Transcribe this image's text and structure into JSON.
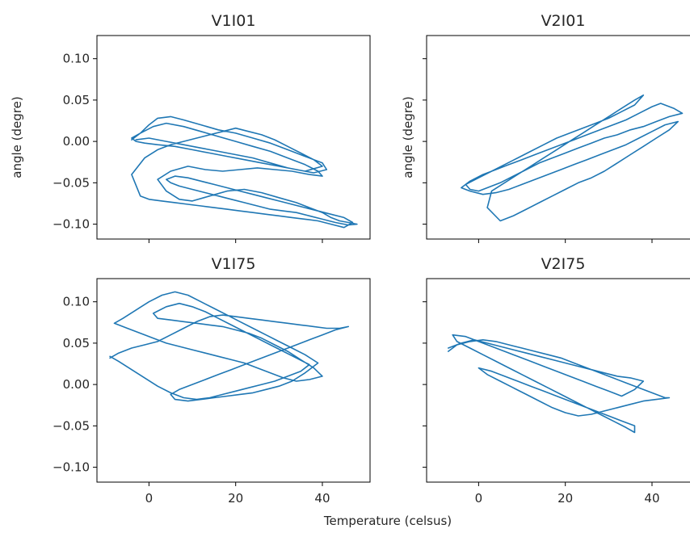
{
  "figure": {
    "xlabel": "Temperature (celsus)",
    "line_color": "#1f77b4"
  },
  "chart_data": [
    {
      "type": "line",
      "title": "V1I01",
      "xlabel": "",
      "ylabel": "angle (degre)",
      "xlim": [
        -12,
        51
      ],
      "ylim": [
        -0.118,
        0.128
      ],
      "x_ticks": [
        0,
        20,
        40
      ],
      "y_ticks": [
        -0.1,
        -0.05,
        0.0,
        0.05,
        0.1
      ],
      "y_tick_labels": [
        "−0.10",
        "−0.05",
        "0.00",
        "0.05",
        "0.10"
      ],
      "show_x_tick_labels": false,
      "show_y_tick_labels": true,
      "series": [
        {
          "x": [
            -4,
            -2,
            0,
            2,
            5,
            8,
            12,
            16,
            20,
            24,
            28,
            32,
            36,
            40,
            41,
            38,
            34,
            30,
            26,
            22,
            18,
            14,
            10,
            6,
            2,
            -1,
            -3,
            -4,
            -2,
            1,
            4,
            8,
            12,
            16,
            20,
            24,
            28,
            32,
            36,
            39,
            40,
            37,
            33,
            29,
            25,
            21,
            17,
            13,
            9,
            5,
            2,
            4,
            7,
            10,
            14,
            18,
            22,
            26,
            30,
            34,
            37,
            40,
            42,
            44,
            46,
            48,
            46,
            43,
            40,
            37,
            34,
            31,
            28,
            25,
            22,
            19,
            16,
            13,
            10,
            7,
            5,
            4,
            6,
            9,
            12,
            15,
            18,
            21,
            24,
            27,
            30,
            33,
            36,
            39,
            42,
            45,
            47,
            45,
            42,
            39,
            36,
            33,
            30,
            27,
            24,
            21,
            18,
            15,
            12,
            9,
            6,
            3,
            0,
            -2,
            -4,
            -1,
            2,
            5,
            8,
            11,
            14,
            17,
            20,
            23,
            26,
            29,
            32,
            35,
            38,
            40,
            36,
            32,
            28,
            24,
            20,
            16,
            12,
            8,
            4,
            0,
            -3
          ],
          "y": [
            0.002,
            0.01,
            0.02,
            0.028,
            0.03,
            0.026,
            0.02,
            0.014,
            0.01,
            0.004,
            -0.002,
            -0.01,
            -0.018,
            -0.026,
            -0.034,
            -0.038,
            -0.034,
            -0.03,
            -0.026,
            -0.022,
            -0.018,
            -0.014,
            -0.01,
            -0.006,
            -0.004,
            -0.002,
            0.0,
            0.004,
            0.01,
            0.018,
            0.022,
            0.018,
            0.012,
            0.006,
            0.0,
            -0.006,
            -0.012,
            -0.02,
            -0.028,
            -0.036,
            -0.042,
            -0.04,
            -0.036,
            -0.034,
            -0.032,
            -0.034,
            -0.036,
            -0.034,
            -0.03,
            -0.036,
            -0.046,
            -0.06,
            -0.07,
            -0.072,
            -0.066,
            -0.06,
            -0.058,
            -0.062,
            -0.068,
            -0.074,
            -0.08,
            -0.086,
            -0.092,
            -0.096,
            -0.098,
            -0.1,
            -0.101,
            -0.098,
            -0.094,
            -0.09,
            -0.086,
            -0.084,
            -0.082,
            -0.078,
            -0.074,
            -0.07,
            -0.066,
            -0.062,
            -0.058,
            -0.054,
            -0.05,
            -0.046,
            -0.042,
            -0.044,
            -0.048,
            -0.052,
            -0.056,
            -0.06,
            -0.064,
            -0.068,
            -0.072,
            -0.076,
            -0.08,
            -0.084,
            -0.088,
            -0.092,
            -0.098,
            -0.104,
            -0.1,
            -0.096,
            -0.094,
            -0.092,
            -0.09,
            -0.088,
            -0.086,
            -0.084,
            -0.082,
            -0.08,
            -0.078,
            -0.076,
            -0.074,
            -0.072,
            -0.07,
            -0.066,
            -0.04,
            -0.02,
            -0.01,
            -0.004,
            0.0,
            0.004,
            0.008,
            0.012,
            0.016,
            0.012,
            0.008,
            0.002,
            -0.006,
            -0.014,
            -0.022,
            -0.03,
            -0.036,
            -0.032,
            -0.026,
            -0.02,
            -0.016,
            -0.012,
            -0.008,
            -0.004,
            0.0,
            0.004,
            0.002
          ]
        }
      ]
    },
    {
      "type": "line",
      "title": "V2I01",
      "xlabel": "",
      "ylabel": "angle (degre)",
      "xlim": [
        -12,
        51
      ],
      "ylim": [
        -0.118,
        0.128
      ],
      "x_ticks": [
        0,
        20,
        40
      ],
      "y_ticks": [
        -0.1,
        -0.05,
        0.0,
        0.05,
        0.1
      ],
      "y_tick_labels": [
        "−0.10",
        "−0.05",
        "0.00",
        "0.05",
        "0.10"
      ],
      "show_x_tick_labels": false,
      "show_y_tick_labels": false,
      "series": [
        {
          "x": [
            -4,
            -2,
            1,
            4,
            7,
            10,
            13,
            16,
            19,
            22,
            25,
            28,
            31,
            34,
            37,
            40,
            42,
            45,
            47,
            44,
            41,
            38,
            35,
            32,
            29,
            26,
            23,
            20,
            17,
            14,
            11,
            8,
            5,
            2,
            0,
            -2,
            -3,
            0,
            3,
            6,
            9,
            12,
            15,
            18,
            21,
            24,
            27,
            30,
            33,
            36,
            38,
            36,
            33,
            30,
            27,
            24,
            21,
            18,
            15,
            12,
            9,
            6,
            3,
            2,
            5,
            8,
            11,
            14,
            17,
            20,
            23,
            26,
            29,
            32,
            35,
            38,
            41,
            44,
            46,
            43,
            40,
            37,
            34,
            31,
            28,
            25,
            22,
            19,
            16,
            13,
            10,
            7,
            4,
            1,
            -2,
            -4
          ],
          "y": [
            -0.056,
            -0.048,
            -0.04,
            -0.034,
            -0.028,
            -0.022,
            -0.016,
            -0.01,
            -0.004,
            0.002,
            0.008,
            0.014,
            0.02,
            0.026,
            0.034,
            0.042,
            0.046,
            0.04,
            0.034,
            0.03,
            0.024,
            0.018,
            0.014,
            0.008,
            0.004,
            -0.002,
            -0.008,
            -0.014,
            -0.02,
            -0.026,
            -0.034,
            -0.042,
            -0.05,
            -0.056,
            -0.06,
            -0.058,
            -0.052,
            -0.044,
            -0.036,
            -0.028,
            -0.02,
            -0.012,
            -0.004,
            0.004,
            0.01,
            0.016,
            0.022,
            0.028,
            0.036,
            0.044,
            0.056,
            0.05,
            0.04,
            0.03,
            0.02,
            0.01,
            0.0,
            -0.01,
            -0.02,
            -0.03,
            -0.04,
            -0.05,
            -0.06,
            -0.08,
            -0.096,
            -0.09,
            -0.082,
            -0.074,
            -0.066,
            -0.058,
            -0.05,
            -0.044,
            -0.036,
            -0.026,
            -0.016,
            -0.006,
            0.004,
            0.014,
            0.024,
            0.02,
            0.012,
            0.004,
            -0.004,
            -0.01,
            -0.016,
            -0.022,
            -0.028,
            -0.034,
            -0.04,
            -0.046,
            -0.052,
            -0.058,
            -0.062,
            -0.064,
            -0.06,
            -0.056
          ]
        }
      ]
    },
    {
      "type": "line",
      "title": "V1I75",
      "xlabel": "",
      "ylabel": "",
      "xlim": [
        -12,
        51
      ],
      "ylim": [
        -0.118,
        0.128
      ],
      "x_ticks": [
        0,
        20,
        40
      ],
      "y_ticks": [
        -0.1,
        -0.05,
        0.0,
        0.05,
        0.1
      ],
      "y_tick_labels": [
        "−0.10",
        "−0.05",
        "0.00",
        "0.05",
        "0.10"
      ],
      "show_x_tick_labels": true,
      "show_y_tick_labels": true,
      "series": [
        {
          "x": [
            -9,
            -7,
            -4,
            -1,
            2,
            5,
            8,
            11,
            14,
            17,
            20,
            23,
            26,
            29,
            32,
            35,
            38,
            41,
            44,
            46,
            43,
            40,
            37,
            34,
            31,
            28,
            25,
            22,
            19,
            16,
            13,
            10,
            7,
            5,
            6,
            9,
            12,
            15,
            18,
            21,
            24,
            27,
            30,
            33,
            36,
            39,
            36,
            33,
            30,
            27,
            24,
            21,
            18,
            15,
            12,
            9,
            6,
            3,
            0,
            -3,
            -6,
            -8,
            -5,
            -2,
            1,
            4,
            7,
            10,
            13,
            16,
            19,
            22,
            25,
            28,
            31,
            34,
            37,
            40,
            38,
            35,
            32,
            29,
            26,
            23,
            20,
            17,
            14,
            11,
            8,
            5,
            2,
            1,
            4,
            7,
            10,
            13,
            16,
            19,
            22,
            25,
            28,
            31,
            34,
            37,
            35,
            32,
            29,
            26,
            23,
            20,
            17,
            14,
            11,
            8,
            5,
            2,
            -1,
            -4,
            -7,
            -9
          ],
          "y": [
            0.032,
            0.038,
            0.044,
            0.048,
            0.052,
            0.06,
            0.068,
            0.076,
            0.082,
            0.084,
            0.082,
            0.08,
            0.078,
            0.076,
            0.074,
            0.072,
            0.07,
            0.068,
            0.068,
            0.07,
            0.066,
            0.06,
            0.054,
            0.048,
            0.042,
            0.036,
            0.03,
            0.024,
            0.018,
            0.012,
            0.006,
            0.0,
            -0.006,
            -0.012,
            -0.018,
            -0.02,
            -0.018,
            -0.016,
            -0.014,
            -0.012,
            -0.01,
            -0.006,
            -0.002,
            0.004,
            0.014,
            0.026,
            0.036,
            0.044,
            0.052,
            0.06,
            0.068,
            0.076,
            0.084,
            0.092,
            0.1,
            0.108,
            0.112,
            0.108,
            0.1,
            0.09,
            0.08,
            0.074,
            0.068,
            0.062,
            0.056,
            0.05,
            0.046,
            0.042,
            0.038,
            0.034,
            0.03,
            0.026,
            0.02,
            0.014,
            0.008,
            0.004,
            0.006,
            0.01,
            0.02,
            0.03,
            0.04,
            0.048,
            0.056,
            0.062,
            0.066,
            0.07,
            0.072,
            0.074,
            0.076,
            0.078,
            0.08,
            0.086,
            0.094,
            0.098,
            0.094,
            0.088,
            0.08,
            0.072,
            0.064,
            0.056,
            0.048,
            0.04,
            0.032,
            0.024,
            0.016,
            0.01,
            0.004,
            0.0,
            -0.004,
            -0.008,
            -0.012,
            -0.016,
            -0.018,
            -0.016,
            -0.01,
            -0.002,
            0.008,
            0.018,
            0.028,
            0.034
          ]
        }
      ]
    },
    {
      "type": "line",
      "title": "V2I75",
      "xlabel": "",
      "ylabel": "",
      "xlim": [
        -12,
        51
      ],
      "ylim": [
        -0.118,
        0.128
      ],
      "x_ticks": [
        0,
        20,
        40
      ],
      "y_ticks": [
        -0.1,
        -0.05,
        0.0,
        0.05,
        0.1
      ],
      "y_tick_labels": [
        "−0.10",
        "−0.05",
        "0.00",
        "0.05",
        "0.10"
      ],
      "show_x_tick_labels": true,
      "show_y_tick_labels": false,
      "series": [
        {
          "x": [
            -7,
            -5,
            -2,
            1,
            4,
            7,
            10,
            13,
            16,
            19,
            22,
            25,
            28,
            31,
            34,
            37,
            40,
            43,
            44,
            41,
            38,
            35,
            32,
            29,
            26,
            23,
            20,
            17,
            14,
            11,
            8,
            5,
            2,
            0,
            3,
            6,
            9,
            12,
            15,
            18,
            21,
            24,
            27,
            30,
            33,
            36,
            36,
            34,
            31,
            28,
            25,
            22,
            19,
            16,
            13,
            10,
            7,
            4,
            1,
            -2,
            -5,
            -6,
            -3,
            0,
            3,
            6,
            9,
            12,
            15,
            18,
            21,
            24,
            27,
            30,
            33,
            36,
            38,
            35,
            32,
            29,
            26,
            23,
            20,
            17,
            14,
            11,
            8,
            5,
            2,
            -1,
            -4,
            -7
          ],
          "y": [
            0.04,
            0.048,
            0.052,
            0.054,
            0.052,
            0.048,
            0.044,
            0.04,
            0.036,
            0.032,
            0.026,
            0.02,
            0.014,
            0.008,
            0.002,
            -0.004,
            -0.01,
            -0.016,
            -0.016,
            -0.018,
            -0.02,
            -0.024,
            -0.028,
            -0.032,
            -0.036,
            -0.038,
            -0.034,
            -0.028,
            -0.02,
            -0.012,
            -0.004,
            0.004,
            0.012,
            0.02,
            0.016,
            0.01,
            0.004,
            -0.002,
            -0.008,
            -0.014,
            -0.02,
            -0.026,
            -0.032,
            -0.038,
            -0.044,
            -0.05,
            -0.058,
            -0.052,
            -0.044,
            -0.036,
            -0.028,
            -0.02,
            -0.012,
            -0.004,
            0.004,
            0.012,
            0.02,
            0.028,
            0.036,
            0.044,
            0.052,
            0.06,
            0.058,
            0.052,
            0.046,
            0.04,
            0.034,
            0.028,
            0.022,
            0.016,
            0.01,
            0.004,
            -0.002,
            -0.008,
            -0.014,
            -0.006,
            0.004,
            0.008,
            0.01,
            0.014,
            0.018,
            0.022,
            0.026,
            0.03,
            0.034,
            0.038,
            0.042,
            0.046,
            0.05,
            0.054,
            0.05,
            0.044
          ]
        }
      ]
    }
  ]
}
